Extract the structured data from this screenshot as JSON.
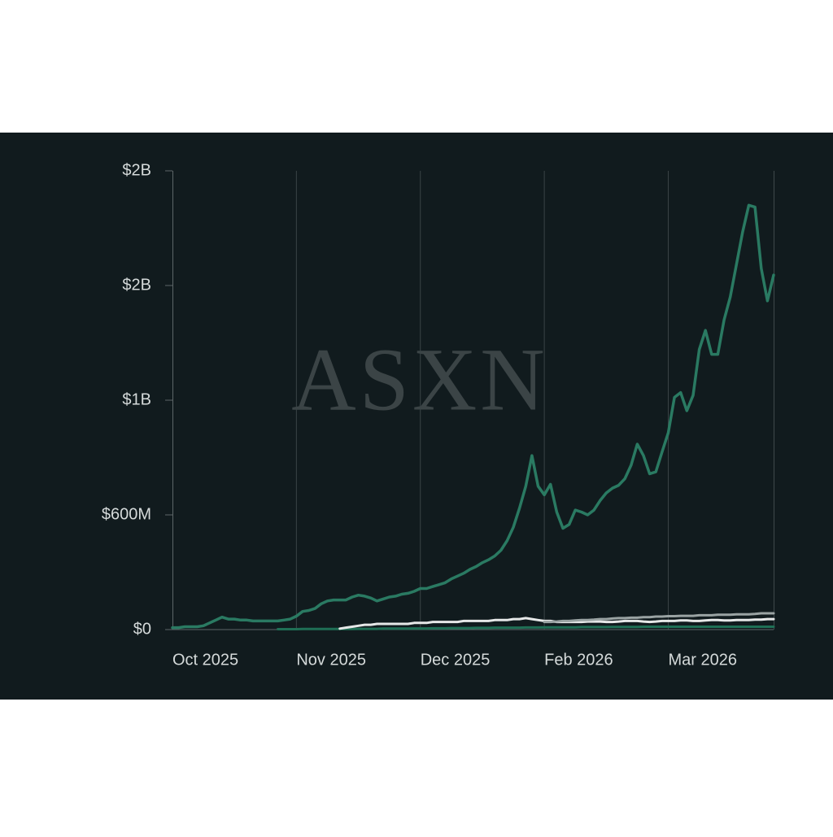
{
  "chart_data": {
    "type": "line",
    "watermark": "ASXN",
    "categories": [
      "Oct 2025",
      null,
      null,
      null,
      null,
      null,
      null,
      null,
      null,
      null,
      null,
      null,
      null,
      null,
      null,
      null,
      null,
      null,
      null,
      null,
      "Nov 2025",
      null,
      null,
      null,
      null,
      null,
      null,
      null,
      null,
      null,
      null,
      null,
      null,
      null,
      null,
      null,
      null,
      null,
      null,
      null,
      "Dec 2025",
      null,
      null,
      null,
      null,
      null,
      null,
      null,
      null,
      null,
      null,
      null,
      null,
      null,
      null,
      null,
      null,
      null,
      null,
      null,
      "Feb 2026",
      null,
      null,
      null,
      null,
      null,
      null,
      null,
      null,
      null,
      null,
      null,
      null,
      null,
      null,
      null,
      null,
      null,
      null,
      null,
      "Mar 2026",
      null,
      null,
      null,
      null,
      null,
      null,
      null,
      null,
      null,
      null,
      null,
      null,
      null,
      null,
      null,
      null,
      null
    ],
    "series": [
      {
        "color": "#2a7a62",
        "values": [
          10000000,
          10000000,
          15000000,
          15000000,
          15000000,
          20000000,
          35000000,
          50000000,
          65000000,
          55000000,
          55000000,
          50000000,
          50000000,
          45000000,
          45000000,
          45000000,
          45000000,
          45000000,
          50000000,
          55000000,
          70000000,
          95000000,
          100000000,
          110000000,
          135000000,
          150000000,
          155000000,
          155000000,
          155000000,
          170000000,
          180000000,
          175000000,
          165000000,
          150000000,
          160000000,
          170000000,
          175000000,
          185000000,
          190000000,
          200000000,
          215000000,
          215000000,
          225000000,
          235000000,
          245000000,
          265000000,
          280000000,
          295000000,
          315000000,
          330000000,
          350000000,
          365000000,
          385000000,
          415000000,
          465000000,
          535000000,
          635000000,
          750000000,
          910000000,
          750000000,
          705000000,
          760000000,
          615000000,
          530000000,
          550000000,
          625000000,
          615000000,
          600000000,
          625000000,
          675000000,
          715000000,
          740000000,
          755000000,
          790000000,
          860000000,
          970000000,
          910000000,
          815000000,
          825000000,
          930000000,
          1030000000,
          1215000000,
          1240000000,
          1145000000,
          1225000000,
          1465000000,
          1565000000,
          1440000000,
          1440000000,
          1620000000,
          1740000000,
          1910000000,
          2080000000,
          2220000000,
          2210000000,
          1890000000,
          1720000000,
          1855000000
        ]
      },
      {
        "color": "#9aa3a3",
        "values": [
          null,
          null,
          null,
          null,
          null,
          null,
          null,
          null,
          null,
          null,
          null,
          null,
          null,
          null,
          null,
          null,
          null,
          null,
          null,
          null,
          null,
          null,
          null,
          null,
          null,
          null,
          null,
          null,
          null,
          null,
          null,
          null,
          null,
          null,
          null,
          null,
          null,
          null,
          null,
          null,
          null,
          null,
          null,
          null,
          null,
          null,
          null,
          null,
          null,
          null,
          null,
          null,
          null,
          null,
          null,
          null,
          null,
          null,
          null,
          null,
          40000000,
          40000000,
          42000000,
          45000000,
          45000000,
          48000000,
          50000000,
          50000000,
          52000000,
          55000000,
          55000000,
          58000000,
          60000000,
          60000000,
          62000000,
          62000000,
          65000000,
          65000000,
          68000000,
          68000000,
          70000000,
          70000000,
          72000000,
          72000000,
          72000000,
          75000000,
          75000000,
          75000000,
          78000000,
          78000000,
          78000000,
          80000000,
          80000000,
          80000000,
          82000000,
          85000000,
          85000000,
          85000000
        ]
      },
      {
        "color": "#e6e8e8",
        "values": [
          null,
          null,
          null,
          null,
          null,
          null,
          null,
          null,
          null,
          null,
          null,
          null,
          null,
          null,
          null,
          null,
          null,
          null,
          null,
          null,
          null,
          null,
          null,
          null,
          null,
          null,
          null,
          5000000,
          10000000,
          15000000,
          20000000,
          25000000,
          25000000,
          30000000,
          30000000,
          30000000,
          30000000,
          30000000,
          30000000,
          35000000,
          35000000,
          35000000,
          40000000,
          40000000,
          40000000,
          40000000,
          40000000,
          45000000,
          45000000,
          45000000,
          45000000,
          45000000,
          50000000,
          50000000,
          50000000,
          55000000,
          55000000,
          60000000,
          55000000,
          50000000,
          45000000,
          45000000,
          40000000,
          40000000,
          40000000,
          40000000,
          40000000,
          42000000,
          42000000,
          42000000,
          40000000,
          40000000,
          42000000,
          45000000,
          45000000,
          45000000,
          42000000,
          40000000,
          42000000,
          45000000,
          45000000,
          45000000,
          48000000,
          48000000,
          45000000,
          45000000,
          48000000,
          50000000,
          50000000,
          48000000,
          48000000,
          50000000,
          50000000,
          50000000,
          52000000,
          52000000,
          55000000,
          55000000
        ]
      },
      {
        "color": "#1f6f55",
        "values": [
          null,
          null,
          null,
          null,
          null,
          null,
          null,
          null,
          null,
          null,
          null,
          null,
          null,
          null,
          null,
          null,
          null,
          2000000,
          2000000,
          2000000,
          2000000,
          3000000,
          3000000,
          3000000,
          3000000,
          3000000,
          3000000,
          3000000,
          3000000,
          3000000,
          4000000,
          4000000,
          4000000,
          4000000,
          5000000,
          5000000,
          5000000,
          5000000,
          5000000,
          6000000,
          6000000,
          6000000,
          7000000,
          7000000,
          7000000,
          8000000,
          8000000,
          8000000,
          8000000,
          9000000,
          9000000,
          9000000,
          10000000,
          10000000,
          10000000,
          10000000,
          10000000,
          11000000,
          11000000,
          11000000,
          12000000,
          12000000,
          12000000,
          12000000,
          12000000,
          12000000,
          13000000,
          13000000,
          13000000,
          13000000,
          13000000,
          14000000,
          14000000,
          14000000,
          14000000,
          14000000,
          15000000,
          15000000,
          15000000,
          15000000,
          15000000,
          15000000,
          15000000,
          15000000,
          15000000,
          15000000,
          15000000,
          15000000,
          15000000,
          15000000,
          15000000,
          15000000,
          15000000,
          15000000,
          15000000,
          15000000,
          15000000,
          15000000
        ]
      }
    ],
    "ylim": [
      0,
      2400000000
    ],
    "yticks": [
      {
        "value": 0,
        "label": "$0"
      },
      {
        "value": 600000000,
        "label": "$600M"
      },
      {
        "value": 1200000000,
        "label": "$1B"
      },
      {
        "value": 1800000000,
        "label": "$2B"
      },
      {
        "value": 2400000000,
        "label": "$2B"
      }
    ]
  }
}
